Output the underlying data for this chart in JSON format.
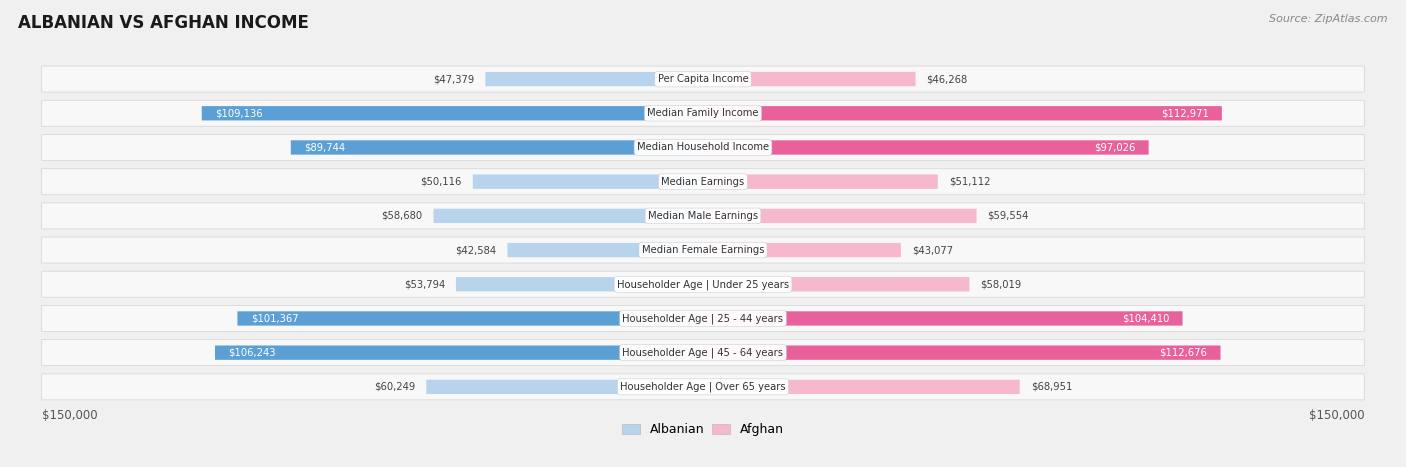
{
  "title": "ALBANIAN VS AFGHAN INCOME",
  "source": "Source: ZipAtlas.com",
  "categories": [
    "Per Capita Income",
    "Median Family Income",
    "Median Household Income",
    "Median Earnings",
    "Median Male Earnings",
    "Median Female Earnings",
    "Householder Age | Under 25 years",
    "Householder Age | 25 - 44 years",
    "Householder Age | 45 - 64 years",
    "Householder Age | Over 65 years"
  ],
  "albanian_values": [
    47379,
    109136,
    89744,
    50116,
    58680,
    42584,
    53794,
    101367,
    106243,
    60249
  ],
  "afghan_values": [
    46268,
    112971,
    97026,
    51112,
    59554,
    43077,
    58019,
    104410,
    112676,
    68951
  ],
  "albanian_labels": [
    "$47,379",
    "$109,136",
    "$89,744",
    "$50,116",
    "$58,680",
    "$42,584",
    "$53,794",
    "$101,367",
    "$106,243",
    "$60,249"
  ],
  "afghan_labels": [
    "$46,268",
    "$112,971",
    "$97,026",
    "$51,112",
    "$59,554",
    "$43,077",
    "$58,019",
    "$104,410",
    "$112,676",
    "$68,951"
  ],
  "albanian_color_light": "#b8d4ed",
  "albanian_color_dark": "#5b9fd4",
  "afghan_color_light": "#f5b8cc",
  "afghan_color_dark": "#e8619a",
  "max_value": 150000,
  "background_color": "#f0f0f0",
  "row_bg_color": "#f8f8f8",
  "row_border_color": "#d8d8d8",
  "legend_albanian_color": "#b8d4ed",
  "legend_afghan_color": "#f5b8cc",
  "label_threshold": 75000,
  "bottom_label_color": "#555555",
  "title_color": "#1a1a1a",
  "source_color": "#888888",
  "cat_label_color": "#333333"
}
